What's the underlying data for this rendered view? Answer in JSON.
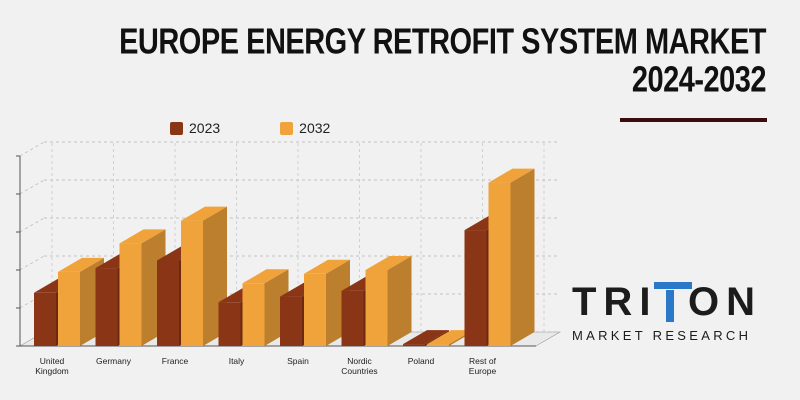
{
  "header": {
    "title_line1": "EUROPE ENERGY RETROFIT SYSTEM MARKET",
    "title_line2": "2024-2032"
  },
  "colors": {
    "series_2023": "#8b3517",
    "series_2032": "#f0a33a",
    "title_rule": "#3d0c0c",
    "logo_accent": "#2a79c9"
  },
  "legend": [
    {
      "label": "2023",
      "color": "#8b3517"
    },
    {
      "label": "2032",
      "color": "#f0a33a"
    }
  ],
  "logo": {
    "word_left": "TRI",
    "word_right": "ON",
    "tagline": "MARKET RESEARCH"
  },
  "chart_data": {
    "type": "bar",
    "style": "3d-clustered",
    "title": "EUROPE ENERGY RETROFIT SYSTEM MARKET 2024-2032",
    "categories": [
      "United Kingdom",
      "Germany",
      "France",
      "Italy",
      "Spain",
      "Nordic Countries",
      "Poland",
      "Rest of Europe"
    ],
    "category_lines": [
      [
        "United",
        "Kingdom"
      ],
      [
        "Germany"
      ],
      [
        "France"
      ],
      [
        "Italy"
      ],
      [
        "Spain"
      ],
      [
        "Nordic",
        "Countries"
      ],
      [
        "Poland"
      ],
      [
        "Rest of",
        "Europe"
      ]
    ],
    "series": [
      {
        "name": "2023",
        "values": [
          1.4,
          2.05,
          2.25,
          1.15,
          1.3,
          1.45,
          0.05,
          3.05
        ]
      },
      {
        "name": "2032",
        "values": [
          1.95,
          2.7,
          3.3,
          1.65,
          1.9,
          2.0,
          0.05,
          4.3
        ]
      }
    ],
    "ylim": [
      0,
      5
    ],
    "grid": true,
    "legend_position": "top",
    "xlabel": "",
    "ylabel": ""
  }
}
